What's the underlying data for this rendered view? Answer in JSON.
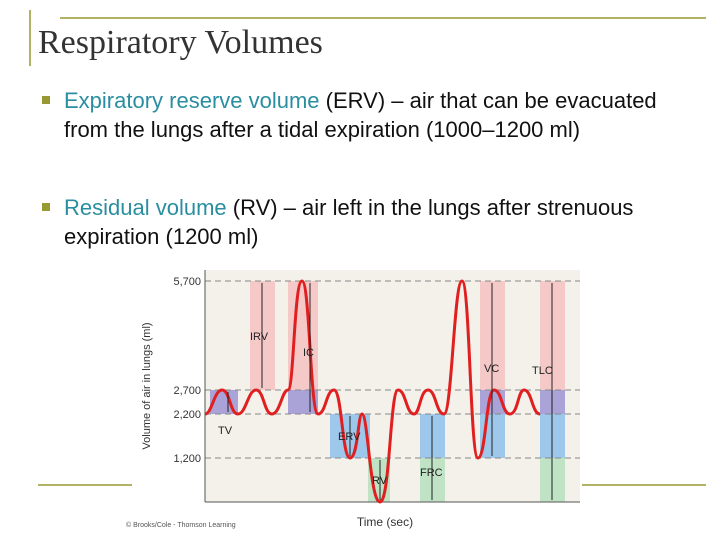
{
  "slide": {
    "title": "Respiratory Volumes",
    "bullets": [
      {
        "term": "Expiratory reserve volume",
        "text": " (ERV) – air that can be evacuated from the lungs after a tidal expiration (1000–1200 ml)"
      },
      {
        "term": "Residual volume",
        "text": " (RV) – air left in the lungs after strenuous expiration (1200 ml)"
      }
    ]
  },
  "figure": {
    "y_label": "Volume of air in lungs (ml)",
    "x_label": "Time (sec)",
    "ticks": [
      "5,700",
      "2,700",
      "2,200",
      "1,200"
    ],
    "labels": [
      "IRV",
      "IC",
      "TV",
      "ERV",
      "RV",
      "FRC",
      "VC",
      "TLC"
    ],
    "credit": "© Brooks/Cole - Thomson Learning"
  }
}
